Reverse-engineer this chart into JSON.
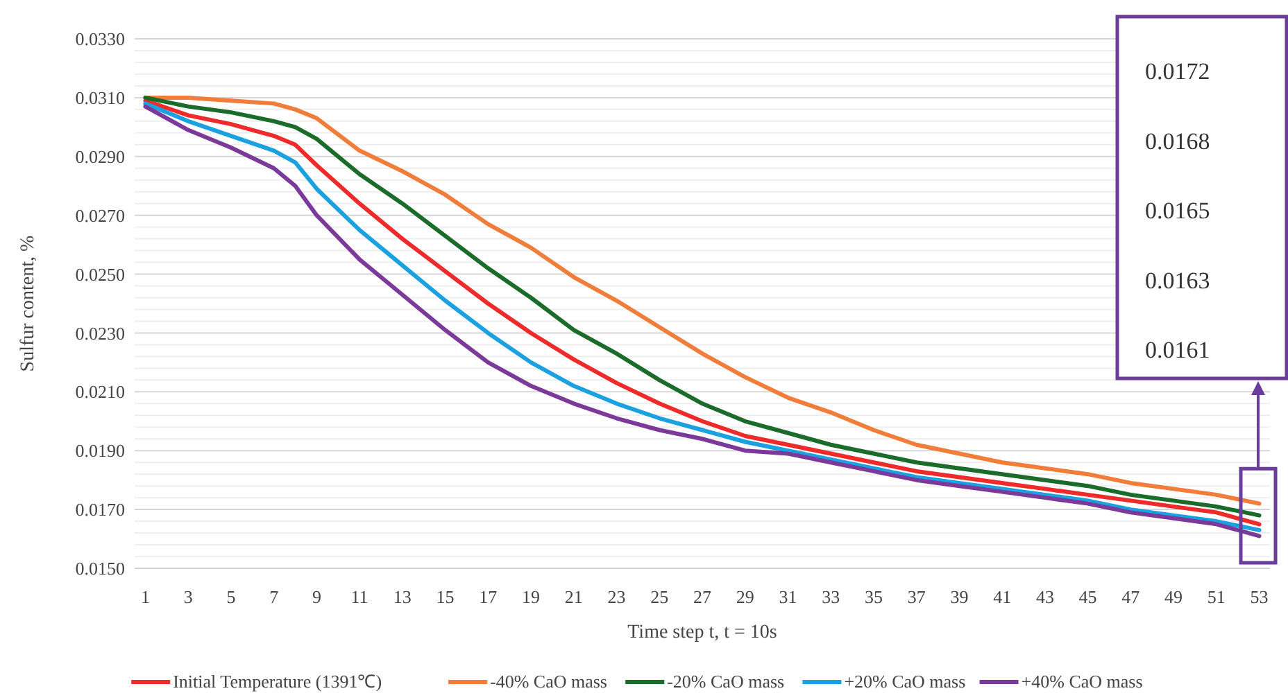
{
  "chart_data": {
    "type": "line",
    "xlabel": "Time step t, t = 10s",
    "ylabel": "Sulfur content, %",
    "xlim": [
      0.5,
      53.5
    ],
    "xticks": [
      1,
      3,
      5,
      7,
      9,
      11,
      13,
      15,
      17,
      19,
      21,
      23,
      25,
      27,
      29,
      31,
      33,
      35,
      37,
      39,
      41,
      43,
      45,
      47,
      49,
      51,
      53
    ],
    "ylim": [
      0.015,
      0.033
    ],
    "yticks": [
      {
        "value": 0.015,
        "label": "0.0150"
      },
      {
        "value": 0.0154,
        "label": null
      },
      {
        "value": 0.0158,
        "label": null
      },
      {
        "value": 0.0162,
        "label": null
      },
      {
        "value": 0.0166,
        "label": null
      },
      {
        "value": 0.017,
        "label": "0.0170"
      },
      {
        "value": 0.0174,
        "label": null
      },
      {
        "value": 0.0178,
        "label": null
      },
      {
        "value": 0.0182,
        "label": null
      },
      {
        "value": 0.0186,
        "label": null
      },
      {
        "value": 0.019,
        "label": "0.0190"
      },
      {
        "value": 0.0194,
        "label": null
      },
      {
        "value": 0.0198,
        "label": null
      },
      {
        "value": 0.0202,
        "label": null
      },
      {
        "value": 0.0206,
        "label": null
      },
      {
        "value": 0.021,
        "label": "0.0210"
      },
      {
        "value": 0.0214,
        "label": null
      },
      {
        "value": 0.0218,
        "label": null
      },
      {
        "value": 0.0222,
        "label": null
      },
      {
        "value": 0.0226,
        "label": null
      },
      {
        "value": 0.023,
        "label": "0.0230"
      },
      {
        "value": 0.0234,
        "label": null
      },
      {
        "value": 0.0238,
        "label": null
      },
      {
        "value": 0.0242,
        "label": null
      },
      {
        "value": 0.0246,
        "label": null
      },
      {
        "value": 0.025,
        "label": "0.0250"
      },
      {
        "value": 0.0254,
        "label": null
      },
      {
        "value": 0.0258,
        "label": null
      },
      {
        "value": 0.0262,
        "label": null
      },
      {
        "value": 0.0266,
        "label": null
      },
      {
        "value": 0.027,
        "label": "0.0270"
      },
      {
        "value": 0.0274,
        "label": null
      },
      {
        "value": 0.0278,
        "label": null
      },
      {
        "value": 0.0282,
        "label": null
      },
      {
        "value": 0.0286,
        "label": null
      },
      {
        "value": 0.029,
        "label": "0.0290"
      },
      {
        "value": 0.0294,
        "label": null
      },
      {
        "value": 0.0298,
        "label": null
      },
      {
        "value": 0.0302,
        "label": null
      },
      {
        "value": 0.0306,
        "label": null
      },
      {
        "value": 0.031,
        "label": "0.0310"
      },
      {
        "value": 0.0314,
        "label": null
      },
      {
        "value": 0.0318,
        "label": null
      },
      {
        "value": 0.0322,
        "label": null
      },
      {
        "value": 0.0326,
        "label": null
      },
      {
        "value": 0.033,
        "label": "0.0330"
      }
    ],
    "grid": "y",
    "legend": "bottom",
    "marker": "none",
    "line_style": "solid",
    "x": [
      1,
      3,
      5,
      7,
      8,
      9,
      11,
      13,
      15,
      17,
      19,
      21,
      23,
      25,
      27,
      29,
      31,
      33,
      35,
      37,
      39,
      41,
      43,
      45,
      47,
      49,
      51,
      53
    ],
    "series": [
      {
        "name": "Initial Temperature (1391℃)",
        "color": "#ee2a2a",
        "values": [
          0.0309,
          0.0304,
          0.0301,
          0.0297,
          0.0294,
          0.0287,
          0.0274,
          0.0262,
          0.0251,
          0.024,
          0.023,
          0.0221,
          0.0213,
          0.0206,
          0.02,
          0.0195,
          0.0192,
          0.0189,
          0.0186,
          0.0183,
          0.0181,
          0.0179,
          0.0177,
          0.0175,
          0.0173,
          0.0171,
          0.0169,
          0.0165
        ]
      },
      {
        "name": "-40% CaO mass",
        "color": "#f07d3a",
        "values": [
          0.031,
          0.031,
          0.0309,
          0.0308,
          0.0306,
          0.0303,
          0.0292,
          0.0285,
          0.0277,
          0.0267,
          0.0259,
          0.0249,
          0.0241,
          0.0232,
          0.0223,
          0.0215,
          0.0208,
          0.0203,
          0.0197,
          0.0192,
          0.0189,
          0.0186,
          0.0184,
          0.0182,
          0.0179,
          0.0177,
          0.0175,
          0.0172
        ]
      },
      {
        "name": "-20% CaO mass",
        "color": "#1b6b2a",
        "values": [
          0.031,
          0.0307,
          0.0305,
          0.0302,
          0.03,
          0.0296,
          0.0284,
          0.0274,
          0.0263,
          0.0252,
          0.0242,
          0.0231,
          0.0223,
          0.0214,
          0.0206,
          0.02,
          0.0196,
          0.0192,
          0.0189,
          0.0186,
          0.0184,
          0.0182,
          0.018,
          0.0178,
          0.0175,
          0.0173,
          0.0171,
          0.0168
        ]
      },
      {
        "name": "+20% CaO mass",
        "color": "#1ba0e0",
        "values": [
          0.0308,
          0.0302,
          0.0297,
          0.0292,
          0.0288,
          0.0279,
          0.0265,
          0.0253,
          0.0241,
          0.023,
          0.022,
          0.0212,
          0.0206,
          0.0201,
          0.0197,
          0.0193,
          0.019,
          0.0187,
          0.0184,
          0.0181,
          0.0179,
          0.0177,
          0.0175,
          0.0173,
          0.017,
          0.0168,
          0.0166,
          0.0163
        ]
      },
      {
        "name": "+40% CaO mass",
        "color": "#7b3a9a",
        "values": [
          0.0307,
          0.0299,
          0.0293,
          0.0286,
          0.028,
          0.027,
          0.0255,
          0.0243,
          0.0231,
          0.022,
          0.0212,
          0.0206,
          0.0201,
          0.0197,
          0.0194,
          0.019,
          0.0189,
          0.0186,
          0.0183,
          0.018,
          0.0178,
          0.0176,
          0.0174,
          0.0172,
          0.0169,
          0.0167,
          0.0165,
          0.0161
        ]
      }
    ],
    "annotations": [
      "0.0172",
      "0.0168",
      "0.0165",
      "0.0163",
      "0.0161"
    ]
  }
}
